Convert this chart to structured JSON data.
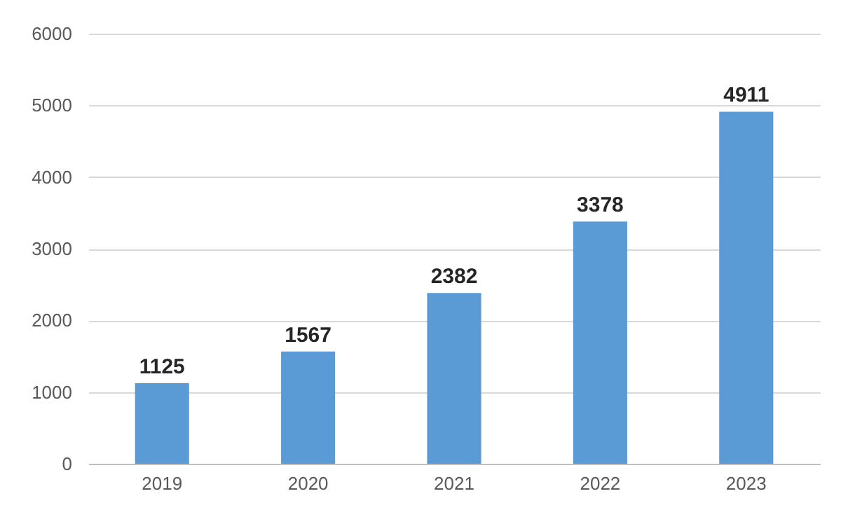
{
  "chart_data": {
    "type": "bar",
    "categories": [
      "2019",
      "2020",
      "2021",
      "2022",
      "2023"
    ],
    "values": [
      1125,
      1567,
      2382,
      3378,
      4911
    ],
    "color": "#5b9bd5",
    "ylim": [
      0,
      6000
    ],
    "yticks": [
      0,
      1000,
      2000,
      3000,
      4000,
      5000,
      6000
    ],
    "grid": "y",
    "data_labels": true
  }
}
